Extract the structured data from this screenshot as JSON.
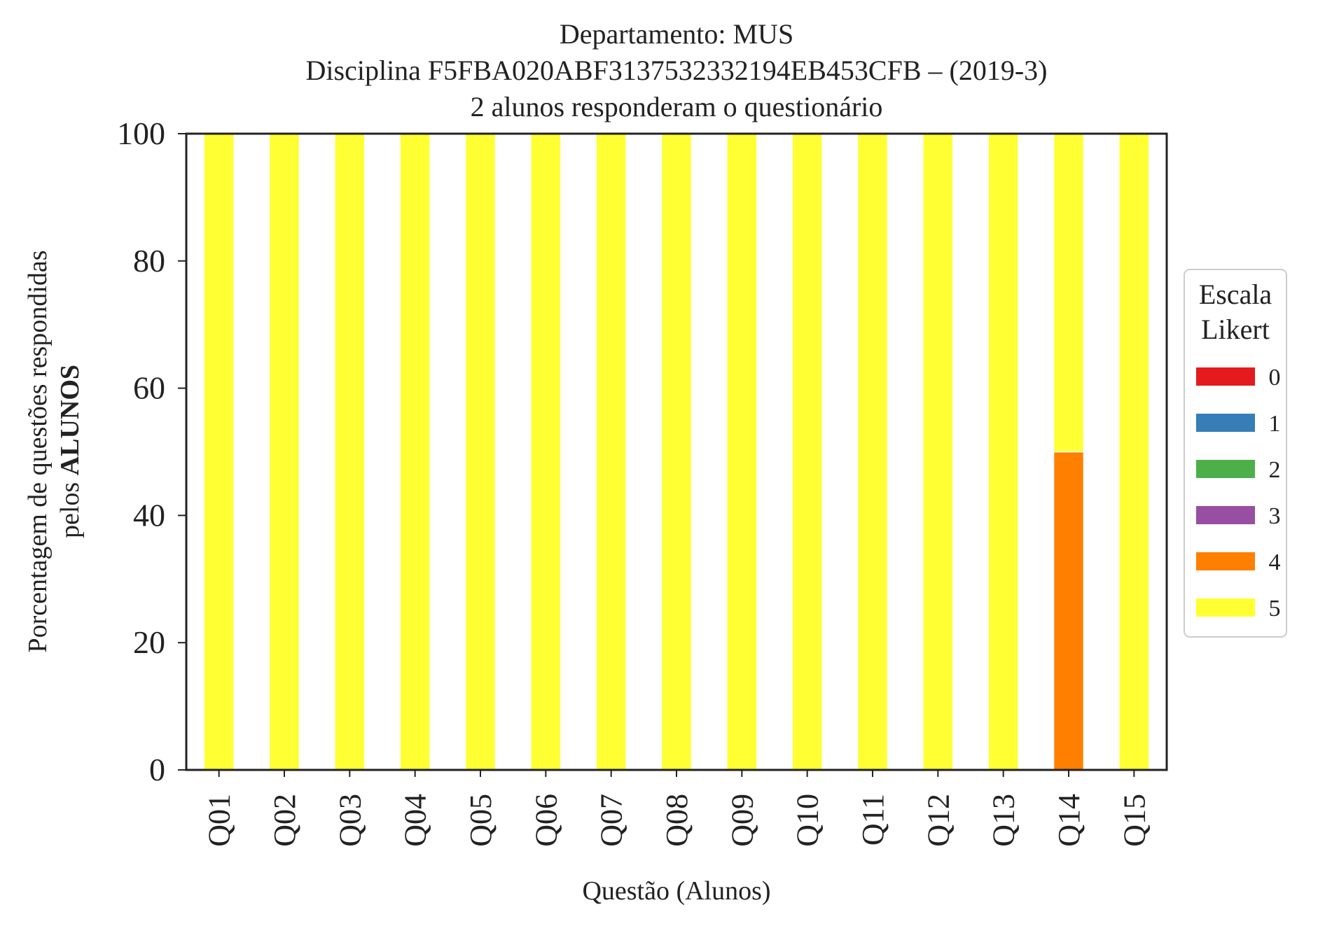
{
  "chart_data": {
    "type": "bar",
    "stacked": true,
    "title": [
      "Departamento: MUS",
      "Disciplina F5FBA020ABF3137532332194EB453CFB – (2019-3)",
      "2 alunos responderam o questionário"
    ],
    "xlabel": "Questão (Alunos)",
    "ylabel": {
      "line1": "Porcentagem de questões respondidas",
      "line2_prefix": "pelos ",
      "line2_bold": "ALUNOS"
    },
    "ylim": [
      0,
      100
    ],
    "yticks": [
      0,
      20,
      40,
      60,
      80,
      100
    ],
    "grid": false,
    "legend": {
      "title": [
        "Escala",
        "Likert"
      ],
      "placement": "right"
    },
    "categories": [
      "Q01",
      "Q02",
      "Q03",
      "Q04",
      "Q05",
      "Q06",
      "Q07",
      "Q08",
      "Q09",
      "Q10",
      "Q11",
      "Q12",
      "Q13",
      "Q14",
      "Q15"
    ],
    "series": [
      {
        "name": "0",
        "color": "#e41a1c",
        "values": [
          0,
          0,
          0,
          0,
          0,
          0,
          0,
          0,
          0,
          0,
          0,
          0,
          0,
          0,
          0
        ]
      },
      {
        "name": "1",
        "color": "#377eb8",
        "values": [
          0,
          0,
          0,
          0,
          0,
          0,
          0,
          0,
          0,
          0,
          0,
          0,
          0,
          0,
          0
        ]
      },
      {
        "name": "2",
        "color": "#4daf4a",
        "values": [
          0,
          0,
          0,
          0,
          0,
          0,
          0,
          0,
          0,
          0,
          0,
          0,
          0,
          0,
          0
        ]
      },
      {
        "name": "3",
        "color": "#984ea3",
        "values": [
          0,
          0,
          0,
          0,
          0,
          0,
          0,
          0,
          0,
          0,
          0,
          0,
          0,
          0,
          0
        ]
      },
      {
        "name": "4",
        "color": "#ff7f00",
        "values": [
          0,
          0,
          0,
          0,
          0,
          0,
          0,
          0,
          0,
          0,
          0,
          0,
          0,
          50,
          0
        ]
      },
      {
        "name": "5",
        "color": "#ffff33",
        "values": [
          100,
          100,
          100,
          100,
          100,
          100,
          100,
          100,
          100,
          100,
          100,
          100,
          100,
          50,
          100
        ]
      }
    ]
  }
}
